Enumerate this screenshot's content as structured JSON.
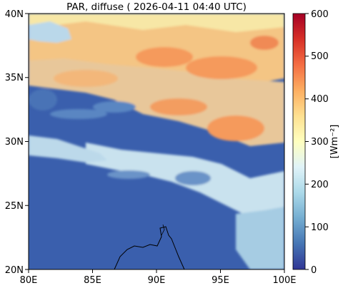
{
  "title": "PAR, diffuse ( 2026-04-11 04:40 UTC)",
  "map": {
    "lon_range": [
      80,
      100
    ],
    "lat_range": [
      20,
      40
    ],
    "lon_ticks": [
      "80E",
      "85E",
      "90E",
      "95E",
      "100E"
    ],
    "lat_ticks": [
      "20N",
      "25N",
      "30N",
      "35N",
      "40N"
    ]
  },
  "colorbar": {
    "label": "[Wm⁻²]",
    "range": [
      0,
      600
    ],
    "ticks": [
      "0",
      "100",
      "200",
      "300",
      "400",
      "500",
      "600"
    ],
    "colormap": "RdYlBu_r",
    "stops": [
      "#313695",
      "#4575b4",
      "#74add1",
      "#abd9e9",
      "#e0f3f8",
      "#ffffbf",
      "#fee090",
      "#fdae61",
      "#f46d43",
      "#d73027",
      "#a50026"
    ]
  },
  "features": {
    "background_color": "#3a5fad",
    "coastline_color": "#000000"
  }
}
